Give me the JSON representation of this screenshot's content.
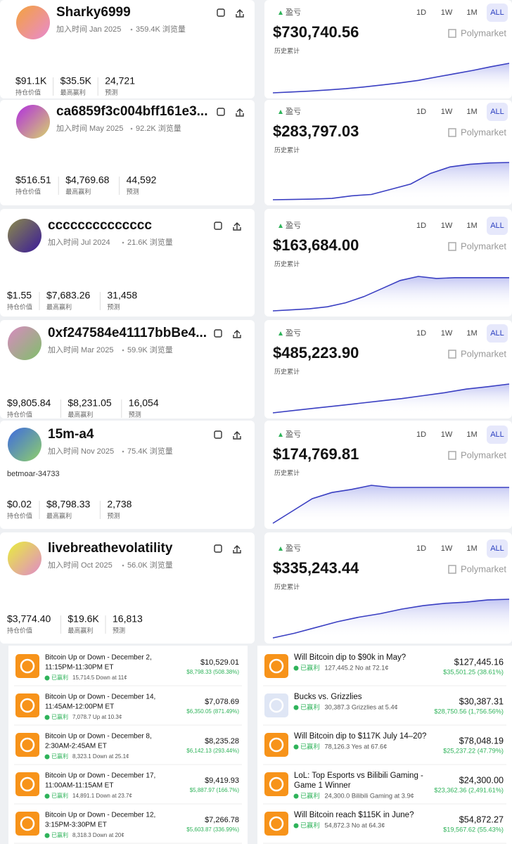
{
  "profiles": [
    {
      "name": "Sharky6999",
      "joined": "加入时间 Jan 2025",
      "views": "359.4K 浏览量",
      "stats": [
        {
          "value": "$91.1K",
          "label": "持仓价值"
        },
        {
          "value": "$35.5K",
          "label": "最高赢利"
        },
        {
          "value": "24,721",
          "label": "预测"
        }
      ],
      "pnl_label": "盈亏",
      "pnl": "$730,740.56",
      "pnl_sub": "历史累计",
      "brand": "Polymarket",
      "ranges": [
        "1D",
        "1W",
        "1M",
        "ALL"
      ],
      "chart": {
        "type": "area",
        "values": [
          20000,
          40000,
          60000,
          90000,
          120000,
          160000,
          210000,
          260000,
          320000,
          400000,
          480000,
          560000,
          650000,
          730740.56
        ]
      }
    },
    {
      "name": "ca6859f3c004bff161e3...",
      "joined": "加入时间 May 2025",
      "views": "92.2K 浏览量",
      "stats": [
        {
          "value": "$516.51",
          "label": "持仓价值"
        },
        {
          "value": "$4,769.68",
          "label": "最高赢利"
        },
        {
          "value": "44,592",
          "label": "预测"
        }
      ],
      "pnl_label": "盈亏",
      "pnl": "$283,797.03",
      "pnl_sub": "历史累计",
      "brand": "Polymarket",
      "ranges": [
        "1D",
        "1W",
        "1M",
        "ALL"
      ],
      "chart": {
        "type": "area",
        "values": [
          0,
          2000,
          5000,
          10000,
          30000,
          40000,
          80000,
          120000,
          200000,
          250000,
          270000,
          280000,
          283797.03
        ]
      }
    },
    {
      "name": "cccccccccccccc",
      "joined": "加入时间 Jul 2024",
      "views": "21.6K 浏览量",
      "stats": [
        {
          "value": "$1.55",
          "label": "持仓价值"
        },
        {
          "value": "$7,683.26",
          "label": "最高赢利"
        },
        {
          "value": "31,458",
          "label": "预测"
        }
      ],
      "pnl_label": "盈亏",
      "pnl": "$163,684.00",
      "pnl_sub": "历史累计",
      "brand": "Polymarket",
      "ranges": [
        "1D",
        "1W",
        "1M",
        "ALL"
      ],
      "chart": {
        "type": "area",
        "values": [
          0,
          5000,
          10000,
          20000,
          40000,
          70000,
          110000,
          150000,
          170000,
          160000,
          163684,
          163684,
          163684,
          163684
        ]
      }
    },
    {
      "name": "0xf247584e41117bbBe4...",
      "joined": "加入时间 Mar 2025",
      "views": "59.9K 浏览量",
      "stats": [
        {
          "value": "$9,805.84",
          "label": "持仓价值"
        },
        {
          "value": "$8,231.05",
          "label": "最高赢利"
        },
        {
          "value": "16,054",
          "label": "预测"
        }
      ],
      "pnl_label": "盈亏",
      "pnl": "$485,223.90",
      "pnl_sub": "历史累计",
      "brand": "Polymarket",
      "ranges": [
        "1D",
        "1W",
        "1M",
        "ALL"
      ],
      "chart": {
        "type": "area",
        "values": [
          0,
          40000,
          80000,
          120000,
          160000,
          200000,
          240000,
          290000,
          340000,
          400000,
          440000,
          485223.9
        ]
      }
    },
    {
      "name": "15m-a4",
      "joined": "加入时间 Nov 2025",
      "views": "75.4K 浏览量",
      "bio": "betmoar-34733",
      "stats": [
        {
          "value": "$0.02",
          "label": "持仓价值"
        },
        {
          "value": "$8,798.33",
          "label": "最高赢利"
        },
        {
          "value": "2,738",
          "label": "预测"
        }
      ],
      "pnl_label": "盈亏",
      "pnl": "$174,769.81",
      "pnl_sub": "历史累计",
      "brand": "Polymarket",
      "ranges": [
        "1D",
        "1W",
        "1M",
        "ALL"
      ],
      "chart": {
        "type": "area",
        "values": [
          0,
          60000,
          120000,
          150000,
          165000,
          185000,
          174769.81,
          174769.81,
          174769.81,
          174769.81,
          174769.81,
          174769.81,
          174769.81
        ]
      }
    },
    {
      "name": "livebreathevolatility",
      "joined": "加入时间 Oct 2025",
      "views": "56.0K 浏览量",
      "stats": [
        {
          "value": "$3,774.40",
          "label": "持仓价值"
        },
        {
          "value": "$19.6K",
          "label": "最高赢利"
        },
        {
          "value": "16,813",
          "label": "预测"
        }
      ],
      "pnl_label": "盈亏",
      "pnl": "$335,243.44",
      "pnl_sub": "历史累计",
      "brand": "Polymarket",
      "ranges": [
        "1D",
        "1W",
        "1M",
        "ALL"
      ],
      "chart": {
        "type": "area",
        "values": [
          0,
          40000,
          90000,
          140000,
          180000,
          210000,
          250000,
          280000,
          300000,
          310000,
          330000,
          335243.44
        ]
      }
    }
  ],
  "trades_left": [
    {
      "title": [
        "Bitcoin Up or Down - December 2,",
        "11:15PM-11:30PM ET"
      ],
      "status": "已赢利",
      "detail": "15,714.5 Down at 11¢",
      "amount": "$10,529.01",
      "gain": "$8,798.33 (508.38%)"
    },
    {
      "title": [
        "Bitcoin Up or Down - December 14,",
        "11:45AM-12:00PM ET"
      ],
      "status": "已赢利",
      "detail": "7,078.7 Up at 10.3¢",
      "amount": "$7,078.69",
      "gain": "$6,350.05 (871.49%)"
    },
    {
      "title": [
        "Bitcoin Up or Down - December 8,",
        "2:30AM-2:45AM ET"
      ],
      "status": "已赢利",
      "detail": "8,323.1 Down at 25.1¢",
      "amount": "$8,235.28",
      "gain": "$6,142.13 (293.44%)"
    },
    {
      "title": [
        "Bitcoin Up or Down - December 17,",
        "11:00AM-11:15AM ET"
      ],
      "status": "已赢利",
      "detail": "14,891.1 Down at 23.7¢",
      "amount": "$9,419.93",
      "gain": "$5,887.97 (166.7%)"
    },
    {
      "title": [
        "Bitcoin Up or Down - December 12,",
        "3:15PM-3:30PM ET"
      ],
      "status": "已赢利",
      "detail": "8,318.3 Down at 20¢",
      "amount": "$7,266.78",
      "gain": "$5,603.87 (336.99%)"
    }
  ],
  "trades_right": [
    {
      "title": [
        "Will Bitcoin dip to $90k in May?"
      ],
      "status": "已赢利",
      "detail": "127,445.2 No at 72.1¢",
      "amount": "$127,445.16",
      "gain": "$35,501.25 (38.61%)"
    },
    {
      "title": [
        "Bucks vs. Grizzlies"
      ],
      "status": "已赢利",
      "detail": "30,387.3 Grizzlies at 5.4¢",
      "amount": "$30,387.31",
      "gain": "$28,750.56 (1,756.56%)"
    },
    {
      "title": [
        "Will Bitcoin dip to $117K July 14–20?"
      ],
      "status": "已赢利",
      "detail": "78,126.3 Yes at 67.6¢",
      "amount": "$78,048.19",
      "gain": "$25,237.22 (47.79%)"
    },
    {
      "title": [
        "LoL: Top Esports vs Bilibili Gaming -",
        "Game 1 Winner"
      ],
      "status": "已赢利",
      "detail": "24,300.0 Bilibili Gaming at 3.9¢",
      "amount": "$24,300.00",
      "gain": "$23,362.36 (2,491.61%)"
    },
    {
      "title": [
        "Will Bitcoin reach $115K in June?"
      ],
      "status": "已赢利",
      "detail": "54,872.3 No at 64.3¢",
      "amount": "$54,872.27",
      "gain": "$19,567.62 (55.43%)"
    }
  ]
}
